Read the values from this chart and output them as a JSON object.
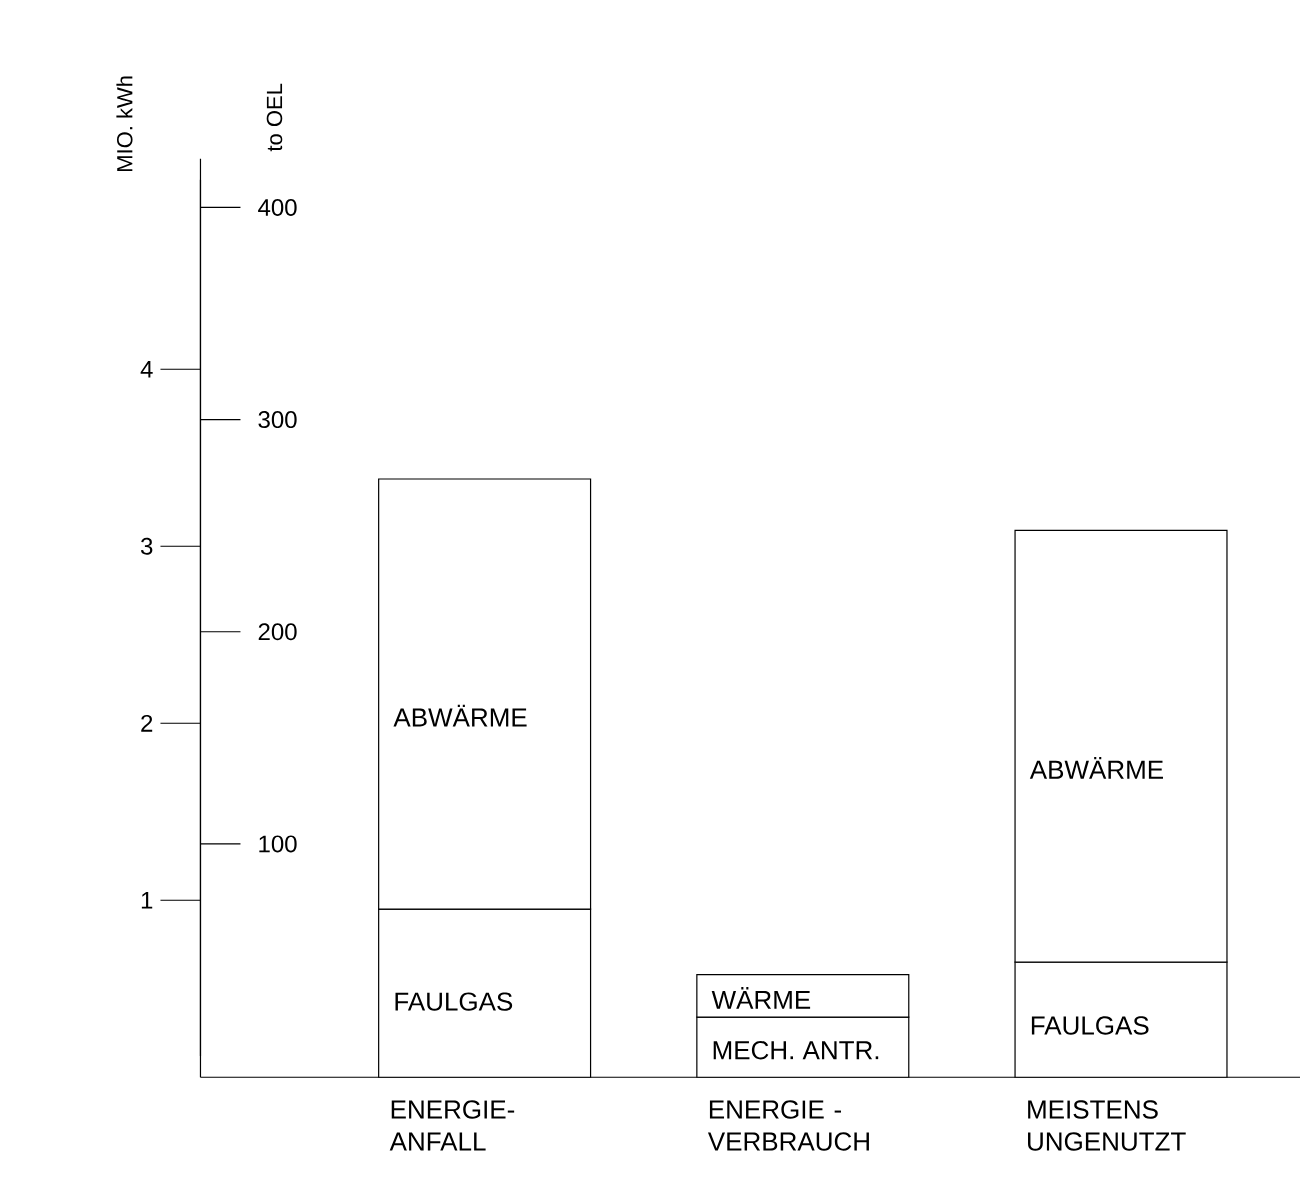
{
  "chart_data": {
    "type": "bar",
    "stacked": true,
    "ylabel": "MIO. kWh",
    "y2label": "to OEL",
    "categories": [
      "ENERGIE- ANFALL",
      "ENERGIE - VERBRAUCH",
      "MEISTENS UNGENUTZT"
    ],
    "series": [
      {
        "name": "FAULGAS",
        "color": "#ffffff",
        "values": [
          0.95,
          null,
          0.65
        ]
      },
      {
        "name": "MECH. ANTR.",
        "color": "#ffffff",
        "values": [
          null,
          0.34,
          null
        ]
      },
      {
        "name": "ABWÄRME",
        "color": "#ffffff",
        "values": [
          2.43,
          null,
          2.44
        ]
      },
      {
        "name": "WÄRME",
        "color": "#ffffff",
        "values": [
          null,
          0.24,
          null
        ]
      }
    ],
    "ylim": [
      0,
      5.07
    ],
    "yticks": [
      1,
      2,
      3,
      4
    ],
    "y2lim": [
      0,
      423
    ],
    "y2ticks": [
      100,
      200,
      300,
      400
    ],
    "grid": false
  }
}
